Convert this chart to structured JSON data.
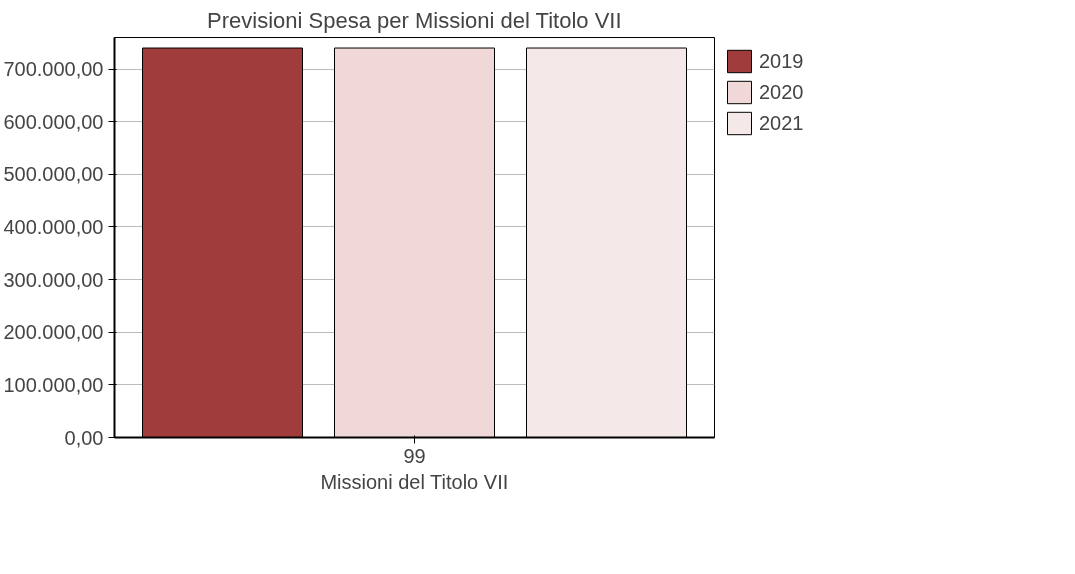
{
  "chart_data": {
    "type": "bar",
    "title": "Previsioni Spesa per Missioni del Titolo VII",
    "xlabel": "Missioni del Titolo VII",
    "categories": [
      "99"
    ],
    "series": [
      {
        "name": "2019",
        "color": "#a03c3c",
        "values": [
          740000
        ]
      },
      {
        "name": "2020",
        "color": "#f0d8d8",
        "values": [
          740000
        ]
      },
      {
        "name": "2021",
        "color": "#f5e8e8",
        "values": [
          740000
        ]
      }
    ],
    "ylim": [
      0,
      760000
    ],
    "yticks": [
      {
        "value": 0,
        "label": "0,00"
      },
      {
        "value": 100000,
        "label": "100.000,00"
      },
      {
        "value": 200000,
        "label": "200.000,00"
      },
      {
        "value": 300000,
        "label": "300.000,00"
      },
      {
        "value": 400000,
        "label": "400.000,00"
      },
      {
        "value": 500000,
        "label": "500.000,00"
      },
      {
        "value": 600000,
        "label": "600.000,00"
      },
      {
        "value": 700000,
        "label": "700.000,00"
      }
    ],
    "grid": "y",
    "legend": "top right"
  }
}
